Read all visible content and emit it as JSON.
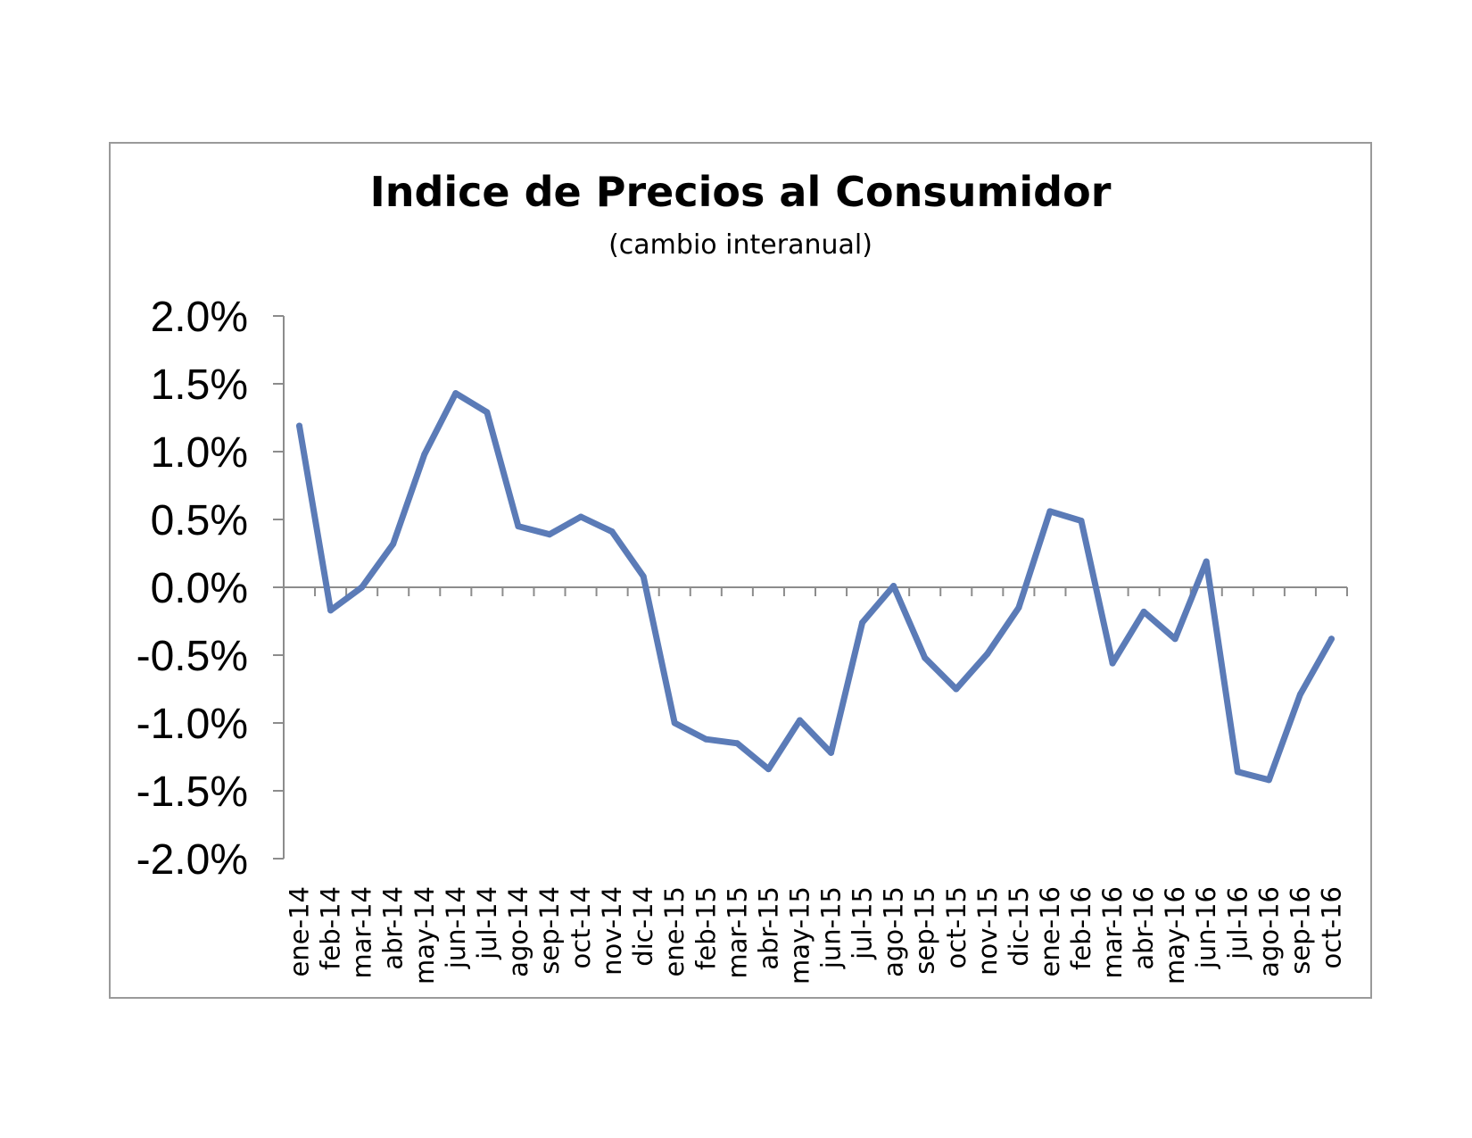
{
  "chart_data": {
    "type": "line",
    "title": "Indice de Precios al Consumidor",
    "subtitle": "(cambio interanual)",
    "xlabel": "",
    "ylabel": "",
    "ylim": [
      -2.0,
      2.0
    ],
    "y_tick_labels": [
      "2.0%",
      "1.5%",
      "1.0%",
      "0.5%",
      "0.0%",
      "-0.5%",
      "-1.0%",
      "-1.5%",
      "-2.0%"
    ],
    "y_tick_values": [
      2.0,
      1.5,
      1.0,
      0.5,
      0.0,
      -0.5,
      -1.0,
      -1.5,
      -2.0
    ],
    "grid": false,
    "legend": "none",
    "line_color": "#5b7bb7",
    "categories": [
      "ene-14",
      "feb-14",
      "mar-14",
      "abr-14",
      "may-14",
      "jun-14",
      "jul-14",
      "ago-14",
      "sep-14",
      "oct-14",
      "nov-14",
      "dic-14",
      "ene-15",
      "feb-15",
      "mar-15",
      "abr-15",
      "may-15",
      "jun-15",
      "jul-15",
      "ago-15",
      "sep-15",
      "oct-15",
      "nov-15",
      "dic-15",
      "ene-16",
      "feb-16",
      "mar-16",
      "abr-16",
      "may-16",
      "jun-16",
      "jul-16",
      "ago-16",
      "sep-16",
      "oct-16"
    ],
    "series": [
      {
        "values": [
          1.19,
          -0.17,
          0.0,
          0.32,
          0.98,
          1.43,
          1.29,
          0.45,
          0.39,
          0.52,
          0.41,
          0.08,
          -1.0,
          -1.12,
          -1.15,
          -1.34,
          -0.98,
          -1.22,
          -0.26,
          0.01,
          -0.52,
          -0.75,
          -0.49,
          -0.15,
          0.56,
          0.49,
          -0.56,
          -0.18,
          -0.38,
          0.19,
          -1.36,
          -1.42,
          -0.79,
          -0.38
        ]
      }
    ]
  }
}
